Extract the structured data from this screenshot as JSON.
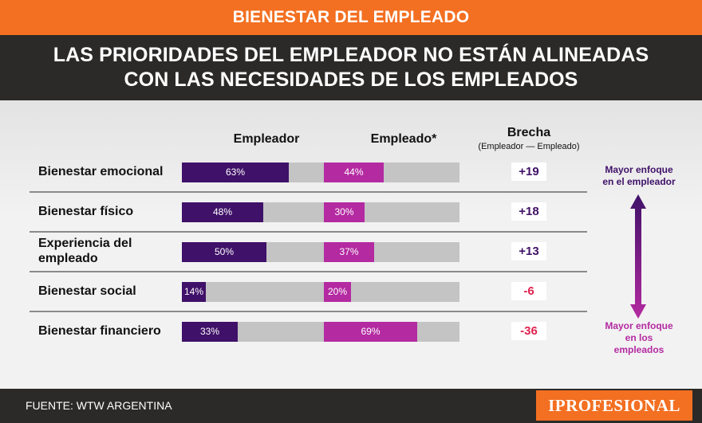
{
  "header": {
    "section": "BIENESTAR DEL EMPLEADO",
    "title_line1": "LAS PRIORIDADES DEL EMPLEADOR NO ESTÁN ALINEADAS",
    "title_line2": "CON LAS NECESIDADES DE LOS EMPLEADOS"
  },
  "columns": {
    "employer": "Empleador",
    "employee": "Empleado*",
    "gap": "Brecha",
    "gap_sub": "(Empleador — Empleado)"
  },
  "side": {
    "top_line1": "Mayor enfoque",
    "top_line2": "en el empleador",
    "bottom_line1": "Mayor enfoque",
    "bottom_line2": "en los",
    "bottom_line3": "empleados"
  },
  "footer": {
    "source": "FUENTE: WTW ARGENTINA",
    "brand": "IPROFESIONAL"
  },
  "colors": {
    "orange": "#f36f21",
    "employer": "#3f1168",
    "employee": "#b42aa1",
    "track": "#c4c4c4",
    "dark": "#2b2a29"
  },
  "chart_data": {
    "type": "bar",
    "orientation": "horizontal",
    "categories": [
      "Bienestar emocional",
      "Bienestar físico",
      "Experiencia del empleado",
      "Bienestar social",
      "Bienestar financiero"
    ],
    "label_lines": [
      [
        "Bienestar emocional"
      ],
      [
        "Bienestar físico"
      ],
      [
        "Experiencia del",
        "empleado"
      ],
      [
        "Bienestar social"
      ],
      [
        "Bienestar financiero"
      ]
    ],
    "series": [
      {
        "name": "Empleador",
        "values": [
          63,
          48,
          50,
          14,
          33
        ],
        "labels": [
          "63%",
          "48%",
          "50%",
          "14%",
          "33%"
        ]
      },
      {
        "name": "Empleado*",
        "values": [
          44,
          30,
          37,
          20,
          69
        ],
        "labels": [
          "44%",
          "30%",
          "37%",
          "20%",
          "69%"
        ]
      }
    ],
    "gap": {
      "name": "Brecha",
      "values": [
        19,
        18,
        13,
        -6,
        -36
      ],
      "labels": [
        "+19",
        "+18",
        "+13",
        "-6",
        "-36"
      ]
    },
    "xlim": [
      0,
      100
    ],
    "title": "LAS PRIORIDADES DEL EMPLEADOR NO ESTÁN ALINEADAS CON LAS NECESIDADES DE LOS EMPLEADOS"
  }
}
